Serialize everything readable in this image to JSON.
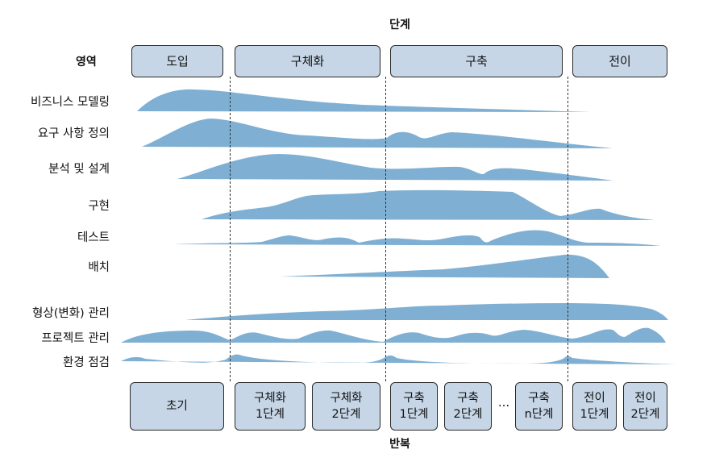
{
  "title_top": "단계",
  "title_bottom": "반복",
  "area_label": "영역",
  "phases": [
    "도입",
    "구체화",
    "구축",
    "전이"
  ],
  "disciplines": [
    "비즈니스 모델링",
    "요구 사항 정의",
    "분석 및 설계",
    "구현",
    "테스트",
    "배치",
    "형상(변화) 관리",
    "프로젝트 관리",
    "환경 점검"
  ],
  "iterations": [
    "초기",
    "구체화\n1단계",
    "구체화\n2단계",
    "구축\n1단계",
    "구축\n2단계",
    "구축\nn단계",
    "전이\n1단계",
    "전이\n2단계"
  ],
  "ellipsis": "...",
  "colors": {
    "hump": "#7fb0d4",
    "box": "#c6d6e6",
    "border": "#2a2a2a"
  }
}
